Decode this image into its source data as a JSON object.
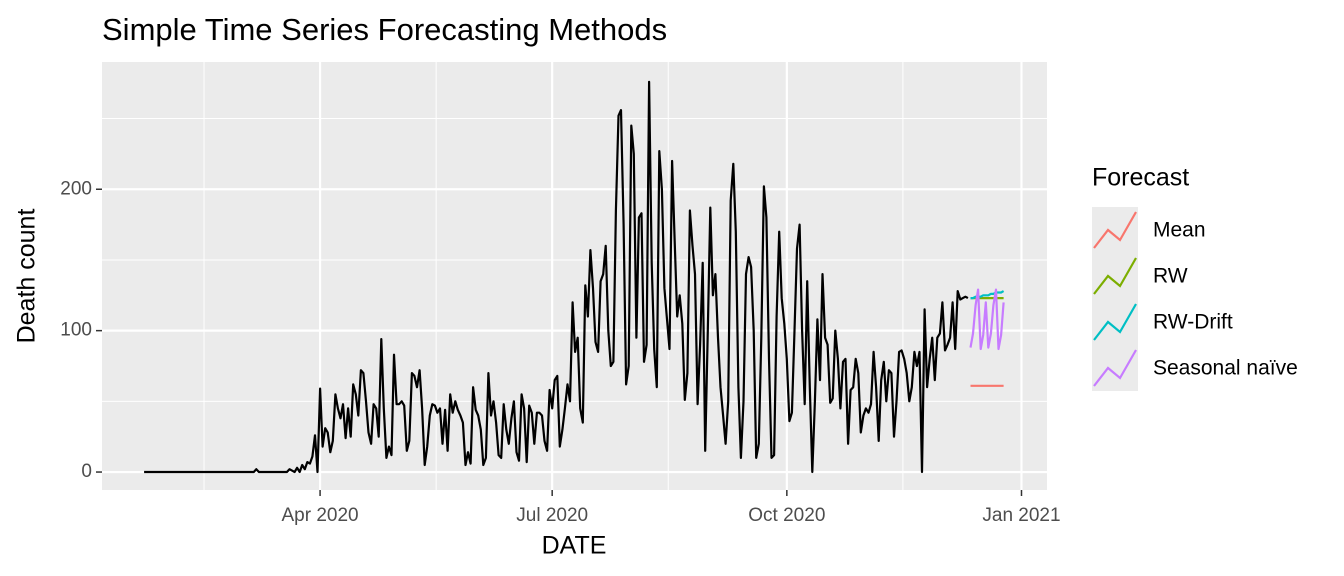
{
  "chart_data": {
    "type": "line",
    "title": "Simple Time Series Forecasting Methods",
    "x_label": "DATE",
    "y_label": "Death count",
    "legend_title": "Forecast",
    "xlim": [
      5.5,
      376
    ],
    "xticks": [
      {
        "value": 91,
        "label": "Apr 2020"
      },
      {
        "value": 182,
        "label": "Jul 2020"
      },
      {
        "value": 274,
        "label": "Oct 2020"
      },
      {
        "value": 366,
        "label": "Jan 2021"
      }
    ],
    "ylim": [
      -12.7,
      290
    ],
    "yticks": [
      0,
      100,
      200
    ],
    "grid": true,
    "history": {
      "color": "#000000",
      "x": [
        22,
        23,
        24,
        25,
        26,
        27,
        28,
        29,
        30,
        31,
        32,
        33,
        34,
        35,
        36,
        37,
        38,
        39,
        40,
        41,
        42,
        43,
        44,
        45,
        46,
        47,
        48,
        49,
        50,
        51,
        52,
        53,
        54,
        55,
        56,
        57,
        58,
        59,
        60,
        61,
        62,
        63,
        64,
        65,
        66,
        67,
        68,
        69,
        70,
        71,
        72,
        73,
        74,
        75,
        76,
        77,
        78,
        79,
        80,
        81,
        82,
        83,
        84,
        85,
        86,
        87,
        88,
        89,
        90,
        91,
        92,
        93,
        94,
        95,
        96,
        97,
        98,
        99,
        100,
        101,
        102,
        103,
        104,
        105,
        106,
        107,
        108,
        109,
        110,
        111,
        112,
        113,
        114,
        115,
        116,
        117,
        118,
        119,
        120,
        121,
        122,
        123,
        124,
        125,
        126,
        127,
        128,
        129,
        130,
        131,
        132,
        133,
        134,
        135,
        136,
        137,
        138,
        139,
        140,
        141,
        142,
        143,
        144,
        145,
        146,
        147,
        148,
        149,
        150,
        151,
        152,
        153,
        154,
        155,
        156,
        157,
        158,
        159,
        160,
        161,
        162,
        163,
        164,
        165,
        166,
        167,
        168,
        169,
        170,
        171,
        172,
        173,
        174,
        175,
        176,
        177,
        178,
        179,
        180,
        181,
        182,
        183,
        184,
        185,
        186,
        187,
        188,
        189,
        190,
        191,
        192,
        193,
        194,
        195,
        196,
        197,
        198,
        199,
        200,
        201,
        202,
        203,
        204,
        205,
        206,
        207,
        208,
        209,
        210,
        211,
        212,
        213,
        214,
        215,
        216,
        217,
        218,
        219,
        220,
        221,
        222,
        223,
        224,
        225,
        226,
        227,
        228,
        229,
        230,
        231,
        232,
        233,
        234,
        235,
        236,
        237,
        238,
        239,
        240,
        241,
        242,
        243,
        244,
        245,
        246,
        247,
        248,
        249,
        250,
        251,
        252,
        253,
        254,
        255,
        256,
        257,
        258,
        259,
        260,
        261,
        262,
        263,
        264,
        265,
        266,
        267,
        268,
        269,
        270,
        271,
        272,
        273,
        274,
        275,
        276,
        277,
        278,
        279,
        280,
        281,
        282,
        283,
        284,
        285,
        286,
        287,
        288,
        289,
        290,
        291,
        292,
        293,
        294,
        295,
        296,
        297,
        298,
        299,
        300,
        301,
        302,
        303,
        304,
        305,
        306,
        307,
        308,
        309,
        310,
        311,
        312,
        313,
        314,
        315,
        316,
        317,
        318,
        319,
        320,
        321,
        322,
        323,
        324,
        325,
        326,
        327,
        328,
        329,
        330,
        331,
        332,
        333,
        334,
        335,
        336,
        337,
        338,
        339,
        340,
        341,
        342,
        343,
        344,
        345
      ],
      "values": [
        0,
        0,
        0,
        0,
        0,
        0,
        0,
        0,
        0,
        0,
        0,
        0,
        0,
        0,
        0,
        0,
        0,
        0,
        0,
        0,
        0,
        0,
        0,
        0,
        0,
        0,
        0,
        0,
        0,
        0,
        0,
        0,
        0,
        0,
        0,
        0,
        0,
        0,
        0,
        0,
        0,
        0,
        0,
        0,
        2,
        0,
        0,
        0,
        0,
        0,
        0,
        0,
        0,
        0,
        0,
        0,
        0,
        2,
        1,
        0,
        3,
        0,
        5,
        2,
        7,
        6,
        11,
        26,
        0,
        59,
        18,
        31,
        28,
        14,
        22,
        55,
        45,
        38,
        48,
        24,
        45,
        25,
        62,
        55,
        40,
        72,
        70,
        50,
        28,
        20,
        48,
        45,
        25,
        94,
        45,
        10,
        18,
        12,
        83,
        48,
        48,
        50,
        47,
        15,
        22,
        70,
        68,
        60,
        72,
        45,
        5,
        18,
        40,
        48,
        47,
        42,
        45,
        20,
        44,
        15,
        55,
        42,
        50,
        44,
        40,
        35,
        5,
        14,
        6,
        60,
        44,
        40,
        30,
        5,
        10,
        70,
        40,
        50,
        35,
        12,
        10,
        48,
        30,
        20,
        38,
        50,
        14,
        8,
        55,
        45,
        7,
        47,
        42,
        20,
        42,
        42,
        40,
        22,
        15,
        58,
        45,
        65,
        68,
        18,
        30,
        45,
        62,
        50,
        120,
        85,
        95,
        45,
        35,
        132,
        110,
        157,
        130,
        92,
        85,
        135,
        140,
        160,
        100,
        75,
        78,
        185,
        252,
        256,
        175,
        62,
        75,
        245,
        225,
        95,
        180,
        183,
        78,
        90,
        276,
        148,
        87,
        60,
        227,
        200,
        130,
        108,
        87,
        220,
        165,
        110,
        125,
        105,
        51,
        70,
        185,
        160,
        140,
        48,
        90,
        148,
        15,
        100,
        187,
        125,
        140,
        95,
        60,
        40,
        20,
        50,
        192,
        218,
        170,
        60,
        10,
        50,
        140,
        152,
        145,
        100,
        10,
        20,
        95,
        202,
        180,
        80,
        10,
        12,
        110,
        170,
        123,
        105,
        80,
        36,
        42,
        100,
        158,
        175,
        100,
        48,
        135,
        60,
        0,
        50,
        108,
        65,
        140,
        95,
        90,
        49,
        52,
        100,
        80,
        45,
        78,
        80,
        20,
        58,
        60,
        80,
        70,
        28,
        40,
        45,
        42,
        48,
        85,
        60,
        22,
        65,
        78,
        50,
        72,
        70,
        25,
        50,
        85,
        86,
        80,
        70,
        50,
        60,
        85,
        75,
        85,
        0,
        115,
        60,
        80,
        95,
        65,
        95,
        98,
        120,
        86,
        90,
        95,
        120,
        87,
        128,
        122,
        123,
        124,
        123
      ]
    },
    "series": [
      {
        "name": "Mean",
        "color": "#F8766D",
        "x": [
          346,
          347,
          348,
          349,
          350,
          351,
          352,
          353,
          354,
          355,
          356,
          357,
          358,
          359
        ],
        "values": [
          61,
          61,
          61,
          61,
          61,
          61,
          61,
          61,
          61,
          61,
          61,
          61,
          61,
          61
        ]
      },
      {
        "name": "RW",
        "color": "#7CAE00",
        "x": [
          346,
          347,
          348,
          349,
          350,
          351,
          352,
          353,
          354,
          355,
          356,
          357,
          358,
          359
        ],
        "values": [
          123,
          123,
          123,
          123,
          123,
          123,
          123,
          123,
          123,
          123,
          123,
          123,
          123,
          123
        ]
      },
      {
        "name": "RW-Drift",
        "color": "#00BFC4",
        "x": [
          346,
          347,
          348,
          349,
          350,
          351,
          352,
          353,
          354,
          355,
          356,
          357,
          358,
          359
        ],
        "values": [
          123,
          123,
          124,
          124,
          124,
          125,
          125,
          125,
          126,
          126,
          127,
          127,
          127,
          128
        ]
      },
      {
        "name": "Seasonal naïve",
        "color": "#C77CFF",
        "x": [
          346,
          347,
          348,
          349,
          350,
          351,
          352,
          353,
          354,
          355,
          356,
          357,
          358,
          359
        ],
        "values": [
          88,
          98,
          118,
          129,
          87,
          97,
          120,
          88,
          98,
          118,
          129,
          87,
          97,
          120
        ]
      }
    ]
  }
}
